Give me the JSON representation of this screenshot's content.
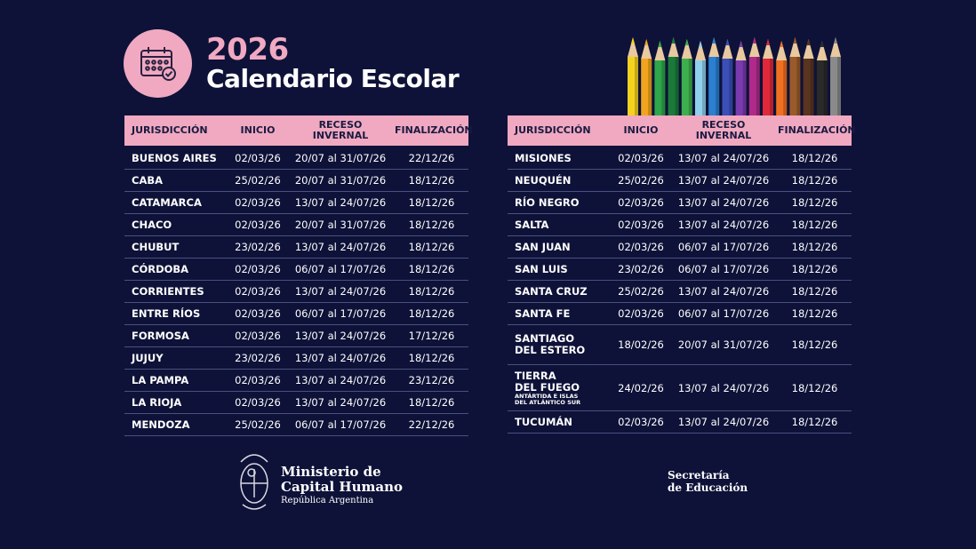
{
  "header": {
    "year": "2026",
    "title": "Calendario Escolar",
    "icon": "calendar-check-icon"
  },
  "columns": [
    "JURISDICCIÓN",
    "INICIO",
    "RECESO INVERNAL",
    "FINALIZACIÓN"
  ],
  "left_table": [
    [
      "BUENOS AIRES",
      "02/03/26",
      "20/07 al 31/07/26",
      "22/12/26"
    ],
    [
      "CABA",
      "25/02/26",
      "20/07 al 31/07/26",
      "18/12/26"
    ],
    [
      "CATAMARCA",
      "02/03/26",
      "13/07 al 24/07/26",
      "18/12/26"
    ],
    [
      "CHACO",
      "02/03/26",
      "20/07 al 31/07/26",
      "18/12/26"
    ],
    [
      "CHUBUT",
      "23/02/26",
      "13/07 al 24/07/26",
      "18/12/26"
    ],
    [
      "CÓRDOBA",
      "02/03/26",
      "06/07 al 17/07/26",
      "18/12/26"
    ],
    [
      "CORRIENTES",
      "02/03/26",
      "13/07 al 24/07/26",
      "18/12/26"
    ],
    [
      "ENTRE RÍOS",
      "02/03/26",
      "06/07 al 17/07/26",
      "18/12/26"
    ],
    [
      "FORMOSA",
      "02/03/26",
      "13/07 al 24/07/26",
      "17/12/26"
    ],
    [
      "JUJUY",
      "23/02/26",
      "13/07 al 24/07/26",
      "18/12/26"
    ],
    [
      "LA PAMPA",
      "02/03/26",
      "13/07 al 24/07/26",
      "23/12/26"
    ],
    [
      "LA RIOJA",
      "02/03/26",
      "13/07 al 24/07/26",
      "18/12/26"
    ],
    [
      "MENDOZA",
      "25/02/26",
      "06/07 al 17/07/26",
      "22/12/26"
    ]
  ],
  "right_table": [
    [
      "MISIONES",
      "02/03/26",
      "13/07 al 24/07/26",
      "18/12/26"
    ],
    [
      "NEUQUÉN",
      "25/02/26",
      "13/07 al 24/07/26",
      "18/12/26"
    ],
    [
      "RÍO NEGRO",
      "02/03/26",
      "13/07 al 24/07/26",
      "18/12/26"
    ],
    [
      "SALTA",
      "02/03/26",
      "13/07 al 24/07/26",
      "18/12/26"
    ],
    [
      "SAN JUAN",
      "02/03/26",
      "06/07 al 17/07/26",
      "18/12/26"
    ],
    [
      "SAN LUIS",
      "23/02/26",
      "06/07 al 17/07/26",
      "18/12/26"
    ],
    [
      "SANTA CRUZ",
      "25/02/26",
      "13/07 al 24/07/26",
      "18/12/26"
    ],
    [
      "SANTA FE",
      "02/03/26",
      "06/07 al 17/07/26",
      "18/12/26"
    ],
    [
      "SANTIAGO|DEL ESTERO",
      "18/02/26",
      "20/07 al 31/07/26",
      "18/12/26"
    ],
    [
      "TIERRA|DEL FUEGO",
      "24/02/26",
      "13/07 al 24/07/26",
      "18/12/26",
      "ANTÁRTIDA E ISLAS|DEL ATLÁNTICO SUR"
    ],
    [
      "TUCUMÁN",
      "02/03/26",
      "13/07 al 24/07/26",
      "18/12/26"
    ]
  ],
  "footer": {
    "ministry_line1": "Ministerio de",
    "ministry_line2": "Capital Humano",
    "country": "República Argentina",
    "secretaria_line1": "Secretaría",
    "secretaria_line2": "de Educación",
    "emblem": "coat-of-arms-icon"
  },
  "colors": {
    "background": "#0e1238",
    "accent": "#f0a9c1"
  },
  "pencil_colors": [
    "#f4d21f",
    "#f2a51c",
    "#2ea64a",
    "#1b7a3a",
    "#3cb04c",
    "#8fd0ec",
    "#2a7fd0",
    "#3a4fb8",
    "#7a3ab0",
    "#b02a8a",
    "#e0283a",
    "#f07020",
    "#9a5a2a",
    "#5a3420",
    "#2a2a2a",
    "#8a8a8a"
  ]
}
